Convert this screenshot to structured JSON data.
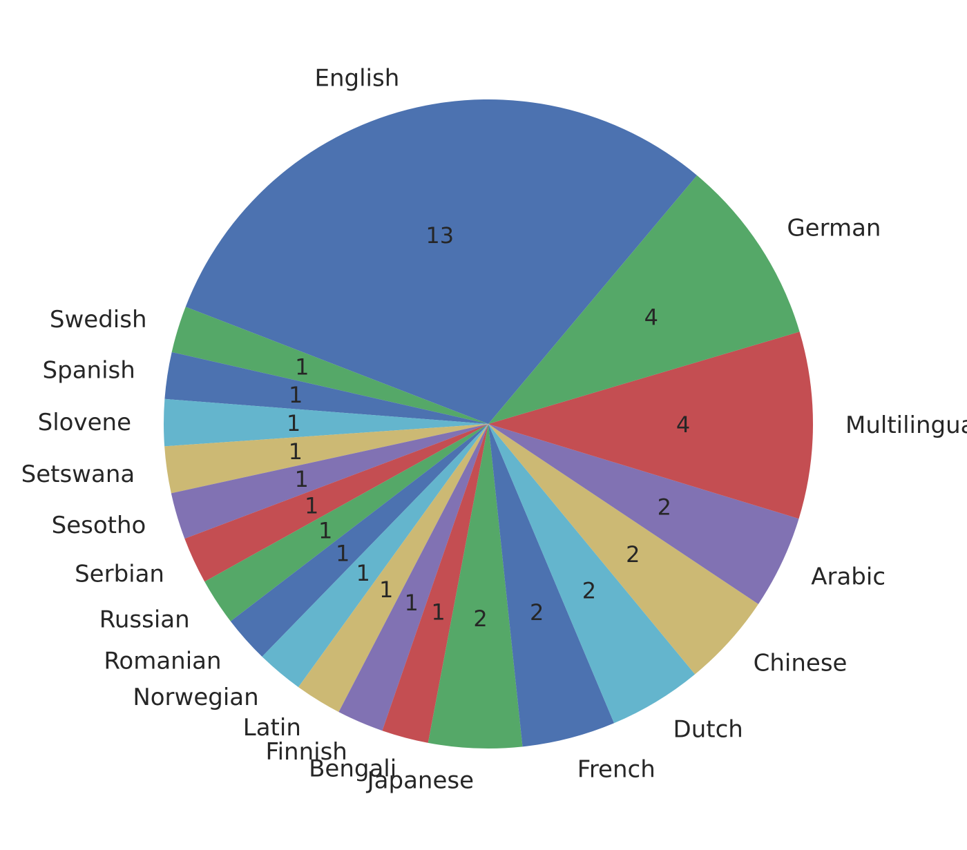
{
  "chart_data": {
    "type": "pie",
    "title": "",
    "categories": [
      "English",
      "Swedish",
      "Spanish",
      "Slovene",
      "Setswana",
      "Sesotho",
      "Serbian",
      "Russian",
      "Romanian",
      "Norwegian",
      "Latin",
      "Finnish",
      "Bengali",
      "Japanese",
      "French",
      "Dutch",
      "Chinese",
      "Arabic",
      "Multilingual",
      "German"
    ],
    "values": [
      13,
      1,
      1,
      1,
      1,
      1,
      1,
      1,
      1,
      1,
      1,
      1,
      1,
      2,
      2,
      2,
      2,
      2,
      4,
      4
    ],
    "colors": [
      "#4c72b0",
      "#55a868",
      "#4c72b0",
      "#64b5cd",
      "#ccb974",
      "#8172b3",
      "#c44e52",
      "#55a868",
      "#4c72b0",
      "#64b5cd",
      "#ccb974",
      "#8172b3",
      "#c44e52",
      "#55a868",
      "#4c72b0",
      "#64b5cd",
      "#ccb974",
      "#8172b3",
      "#c44e52",
      "#55a868"
    ],
    "value_labels": [
      "13",
      "1",
      "1",
      "1",
      "1",
      "1",
      "1",
      "1",
      "1",
      "1",
      "1",
      "1",
      "1",
      "2",
      "2",
      "2",
      "2",
      "2",
      "4",
      "4"
    ],
    "legend": "none"
  }
}
